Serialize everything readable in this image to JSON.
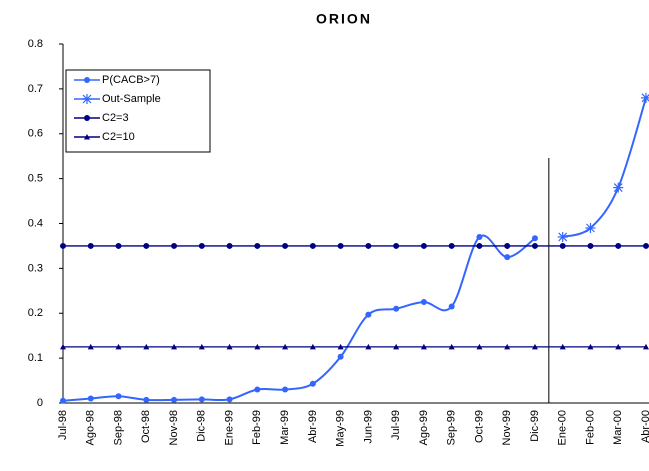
{
  "chart_data": {
    "type": "line",
    "title": "ORION",
    "categories": [
      "Jul-98",
      "Ago-98",
      "Sep-98",
      "Oct-98",
      "Nov-98",
      "Dic-98",
      "Ene-99",
      "Feb-99",
      "Mar-99",
      "Abr-99",
      "May-99",
      "Jun-99",
      "Jul-99",
      "Ago-99",
      "Sep-99",
      "Oct-99",
      "Nov-99",
      "Dic-99",
      "Ene-00",
      "Feb-00",
      "Mar-00",
      "Abr-00"
    ],
    "series": [
      {
        "name": "P(CACB>7)",
        "color": "#3366ff",
        "marker": "circle",
        "smooth": true,
        "values": [
          0.005,
          0.01,
          0.015,
          0.007,
          0.007,
          0.008,
          0.008,
          0.03,
          0.03,
          0.043,
          0.103,
          0.197,
          0.21,
          0.225,
          0.215,
          0.37,
          0.325,
          0.367,
          null,
          null,
          null,
          null
        ]
      },
      {
        "name": "Out-Sample",
        "color": "#3366ff",
        "marker": "asterisk",
        "smooth": true,
        "values": [
          null,
          null,
          null,
          null,
          null,
          null,
          null,
          null,
          null,
          null,
          null,
          null,
          null,
          null,
          null,
          null,
          null,
          null,
          0.37,
          0.39,
          0.48,
          0.68
        ]
      },
      {
        "name": "C2=3",
        "color": "#000080",
        "marker": "circle",
        "smooth": false,
        "values": [
          0.35,
          0.35,
          0.35,
          0.35,
          0.35,
          0.35,
          0.35,
          0.35,
          0.35,
          0.35,
          0.35,
          0.35,
          0.35,
          0.35,
          0.35,
          0.35,
          0.35,
          0.35,
          0.35,
          0.35,
          0.35,
          0.35
        ]
      },
      {
        "name": "C2=10",
        "color": "#000080",
        "marker": "triangle",
        "smooth": false,
        "values": [
          0.125,
          0.125,
          0.125,
          0.125,
          0.125,
          0.125,
          0.125,
          0.125,
          0.125,
          0.125,
          0.125,
          0.125,
          0.125,
          0.125,
          0.125,
          0.125,
          0.125,
          0.125,
          0.125,
          0.125,
          0.125,
          0.125
        ]
      }
    ],
    "ylim": [
      0,
      0.8
    ],
    "yticks": [
      0,
      0.1,
      0.2,
      0.3,
      0.4,
      0.5,
      0.6,
      0.7,
      0.8
    ],
    "grid": false,
    "legend": "upper-left"
  }
}
